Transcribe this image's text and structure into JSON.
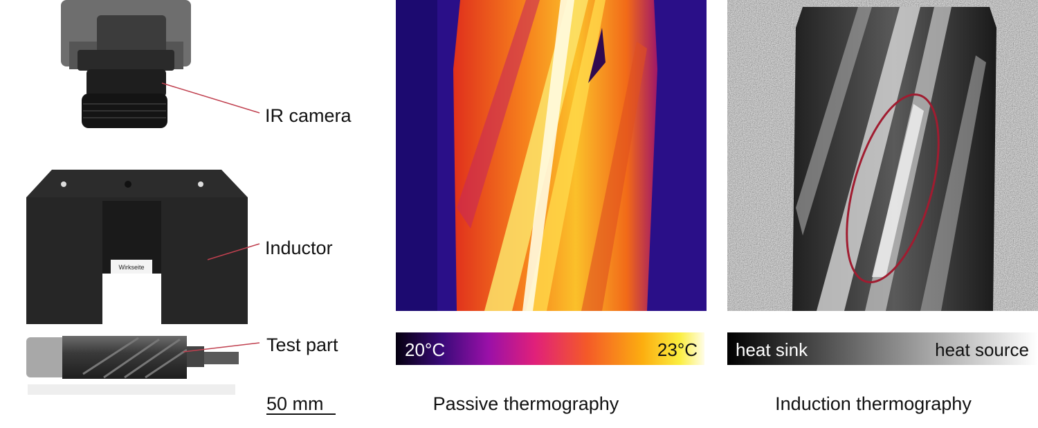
{
  "setup": {
    "camera_label": "IR camera",
    "inductor_label": "Inductor",
    "inductor_tag": "Wirkseite",
    "test_part_label": "Test part",
    "scale_bar": "50 mm"
  },
  "passive": {
    "scale_min": "20°C",
    "scale_max": "23°C",
    "caption": "Passive thermography"
  },
  "induction": {
    "scale_min": "heat sink",
    "scale_max": "heat source",
    "caption": "Induction thermography"
  }
}
